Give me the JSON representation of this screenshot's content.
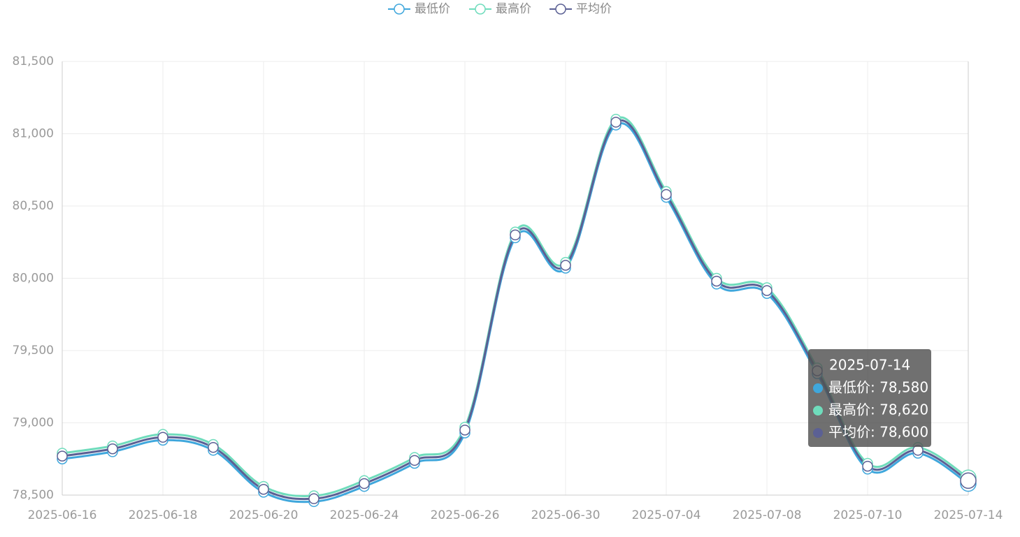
{
  "chart_data": {
    "type": "line",
    "categories": [
      "2025-06-16",
      null,
      "2025-06-18",
      null,
      "2025-06-20",
      null,
      "2025-06-24",
      null,
      "2025-06-26",
      null,
      "2025-06-30",
      null,
      "2025-07-04",
      null,
      "2025-07-08",
      null,
      "2025-07-10",
      null,
      "2025-07-14"
    ],
    "series": [
      {
        "name": "最低价",
        "color": "#3fa7dc",
        "values": [
          78750,
          78800,
          78880,
          78810,
          78520,
          78455,
          78560,
          78720,
          78930,
          80280,
          80070,
          81060,
          80560,
          79960,
          79895,
          79340,
          78680,
          78790,
          78580
        ]
      },
      {
        "name": "最高价",
        "color": "#6fdcbc",
        "values": [
          78790,
          78840,
          78920,
          78850,
          78560,
          78495,
          78600,
          78760,
          78970,
          80320,
          80110,
          81100,
          80600,
          80000,
          79935,
          79380,
          78720,
          78830,
          78620
        ]
      },
      {
        "name": "平均价",
        "color": "#5b6094",
        "values": [
          78770,
          78820,
          78900,
          78830,
          78540,
          78475,
          78580,
          78740,
          78950,
          80300,
          80090,
          81080,
          80580,
          79980,
          79915,
          79360,
          78700,
          78810,
          78600
        ]
      }
    ],
    "ylim": [
      78500,
      81500
    ],
    "yticks": [
      {
        "value": 78500,
        "label": "78,500"
      },
      {
        "value": 79000,
        "label": "79,000"
      },
      {
        "value": 79500,
        "label": "79,500"
      },
      {
        "value": 80000,
        "label": "80,000"
      },
      {
        "value": 80500,
        "label": "80,500"
      },
      {
        "value": 81000,
        "label": "81,000"
      },
      {
        "value": 81500,
        "label": "81,500"
      }
    ],
    "grid": true,
    "smooth": true,
    "tooltip": {
      "title": "2025-07-14",
      "rows": [
        "最低价: 78,580",
        "最高价: 78,620",
        "平均价: 78,600"
      ]
    }
  }
}
